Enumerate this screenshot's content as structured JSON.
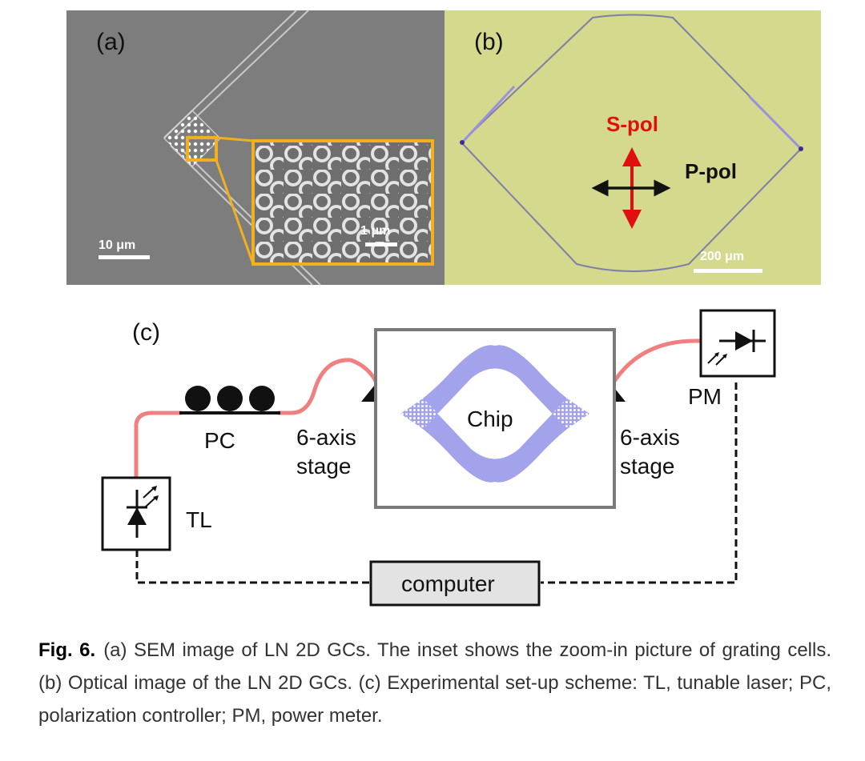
{
  "panel_a": {
    "label": "(a)",
    "scale_bar_main": "10 μm",
    "scale_bar_inset": "1 μm"
  },
  "panel_b": {
    "label": "(b)",
    "s_pol": "S-pol",
    "p_pol": "P-pol",
    "scale_bar": "200 μm"
  },
  "panel_c": {
    "label": "(c)",
    "pc": "PC",
    "stage_left": [
      "6-axis",
      "stage"
    ],
    "stage_right": [
      "6-axis",
      "stage"
    ],
    "chip": "Chip",
    "pm": "PM",
    "tl": "TL",
    "computer": "computer"
  },
  "colors": {
    "sem_background": "#7d7d7d",
    "optical_background": "#d5d98e",
    "fiber": "#f08080",
    "chip_waveguide": "#a3a3ec",
    "s_pol_arrow": "#e01010",
    "inset_frame": "#f2b01e"
  },
  "caption": {
    "label": "Fig. 6.",
    "text": "(a) SEM image of LN 2D GCs. The inset shows the zoom-in picture of grating cells. (b) Optical image of the LN 2D GCs. (c) Experimental set-up scheme: TL, tunable laser; PC, polarization controller; PM, power meter."
  }
}
